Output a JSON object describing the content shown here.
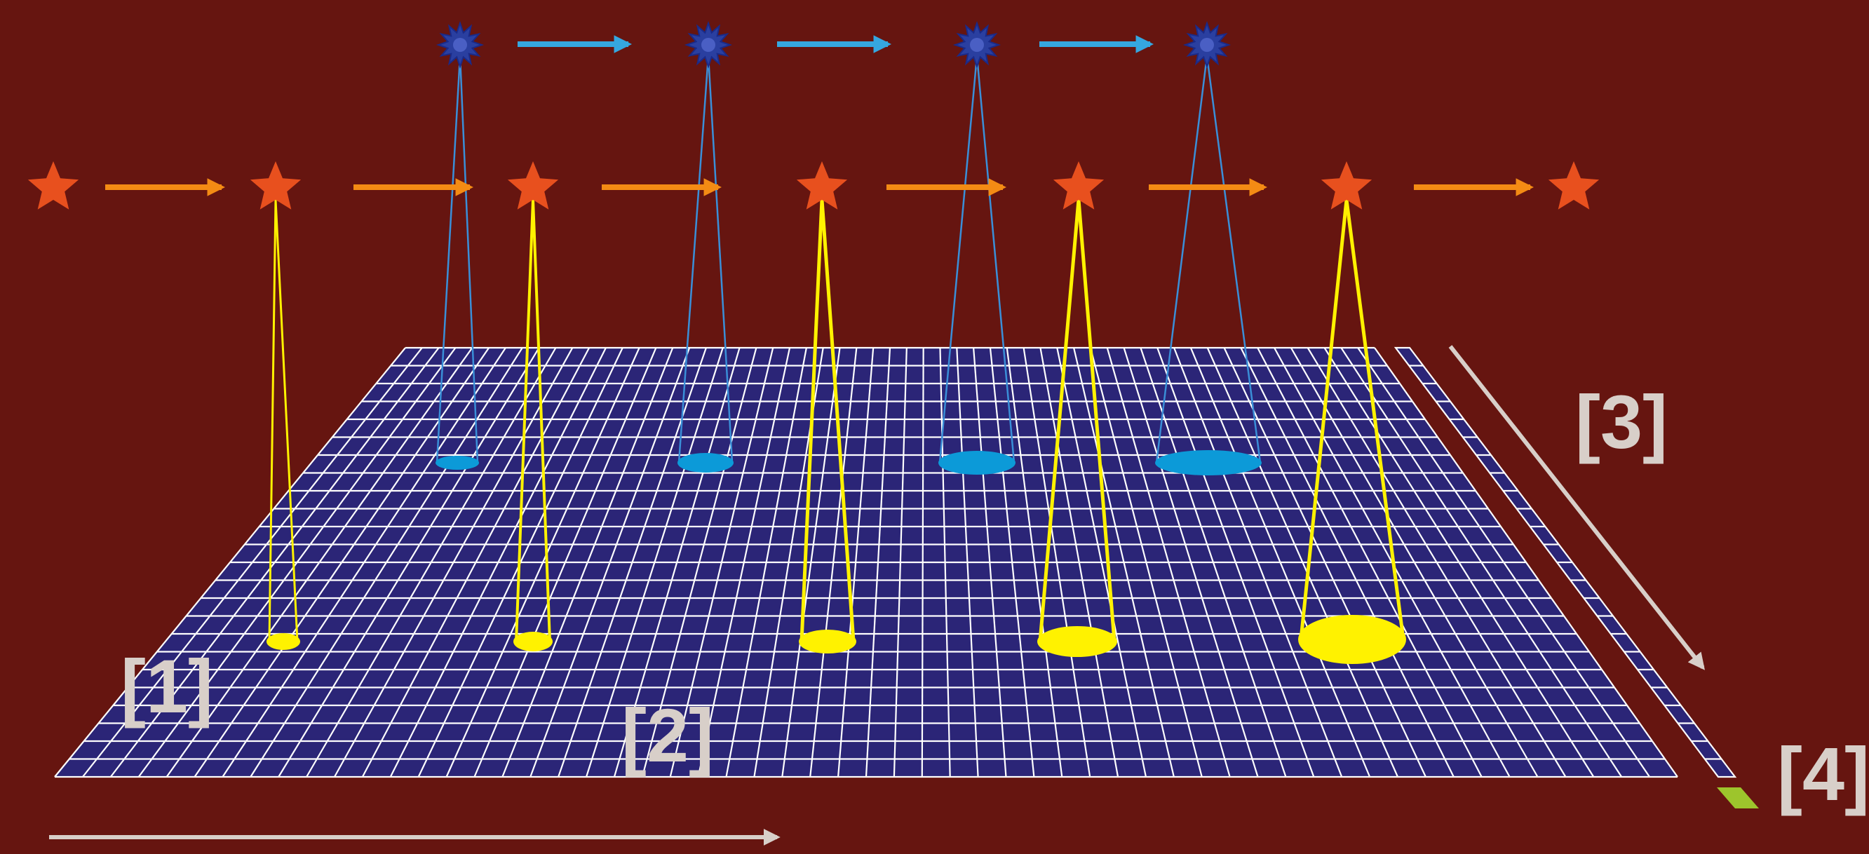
{
  "labels": {
    "one": "[1]",
    "two": "[2]",
    "three": "[3]",
    "four": "[4]"
  },
  "colors": {
    "background": "#661510",
    "grid_fill": "#2b2577",
    "grid_lines": "#ffffff",
    "red_star": "#e8501e",
    "orange_arrow": "#f48b14",
    "blue_arrow": "#35a7e0",
    "blue_burst": "#2a3fa0",
    "blue_spot": "#0c9ad8",
    "yellow_beam": "#fff200",
    "small_tile": "#9dc52c",
    "axis_arrow": "#d8cfc9"
  },
  "icons": {
    "top_row": "blue-burst-icon",
    "middle_row": "red-star-icon",
    "arrows": "right-arrow-icon"
  }
}
